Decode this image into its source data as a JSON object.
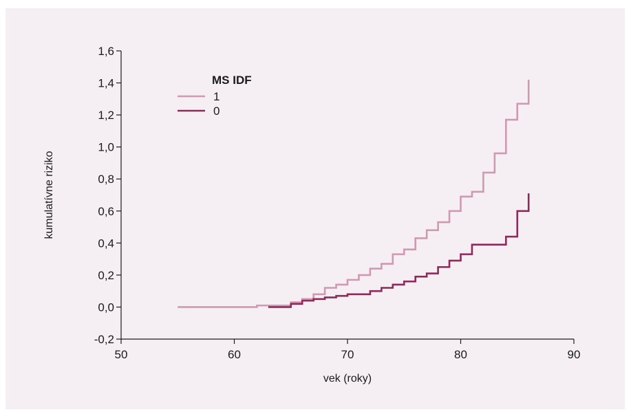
{
  "chart_data": {
    "type": "line",
    "step": true,
    "xlabel": "vek (roky)",
    "ylabel": "kumulatívne riziko",
    "xlim": [
      50,
      90
    ],
    "ylim": [
      -0.2,
      1.6
    ],
    "x_ticks": [
      "50",
      "60",
      "70",
      "80",
      "90"
    ],
    "y_ticks": [
      "-0,2",
      "0,0",
      "0,2",
      "0,4",
      "0,6",
      "0,8",
      "1,0",
      "1,2",
      "1,4",
      "1,6"
    ],
    "x_tick_values": [
      50,
      60,
      70,
      80,
      90
    ],
    "y_tick_values": [
      -0.2,
      0.0,
      0.2,
      0.4,
      0.6,
      0.8,
      1.0,
      1.2,
      1.4,
      1.6
    ],
    "grid": false,
    "legend": {
      "title": "MS IDF",
      "position": "top-left"
    },
    "series": [
      {
        "name": "1",
        "color": "#d198b2",
        "x": [
          55,
          62,
          65,
          66,
          67,
          68,
          69,
          70,
          71,
          72,
          73,
          74,
          75,
          76,
          77,
          78,
          79,
          80,
          81,
          82,
          83,
          84,
          85,
          86
        ],
        "y": [
          0.0,
          0.01,
          0.03,
          0.05,
          0.08,
          0.12,
          0.14,
          0.17,
          0.2,
          0.24,
          0.27,
          0.33,
          0.36,
          0.43,
          0.48,
          0.53,
          0.6,
          0.69,
          0.72,
          0.84,
          0.96,
          1.17,
          1.27,
          1.42
        ]
      },
      {
        "name": "0",
        "color": "#8e2a5a",
        "x": [
          63,
          65,
          66,
          67,
          68,
          69,
          70,
          72,
          73,
          74,
          75,
          76,
          77,
          78,
          79,
          80,
          81,
          84,
          85,
          86
        ],
        "y": [
          0.0,
          0.02,
          0.04,
          0.05,
          0.06,
          0.07,
          0.08,
          0.1,
          0.12,
          0.14,
          0.16,
          0.19,
          0.21,
          0.25,
          0.29,
          0.33,
          0.39,
          0.44,
          0.6,
          0.71
        ]
      }
    ]
  }
}
